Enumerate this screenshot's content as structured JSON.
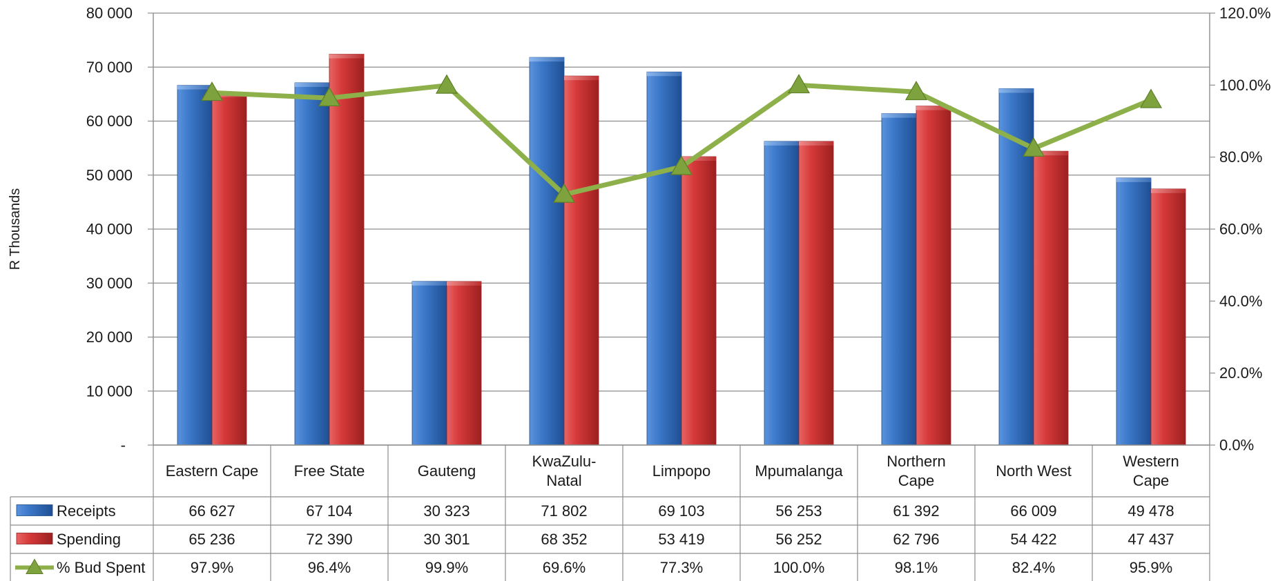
{
  "chart_data": {
    "type": "bar",
    "ylabel": "R Thousands",
    "ylim": [
      0,
      80000
    ],
    "y2lim": [
      0,
      120
    ],
    "y_ticks": [
      "-",
      "10 000",
      "20 000",
      "30 000",
      "40 000",
      "50 000",
      "60 000",
      "70 000",
      "80 000"
    ],
    "y2_ticks": [
      "0.0%",
      "20.0%",
      "40.0%",
      "60.0%",
      "80.0%",
      "100.0%",
      "120.0%"
    ],
    "grid": true,
    "legend": "data-table",
    "categories": [
      [
        "Eastern Cape"
      ],
      [
        "Free State"
      ],
      [
        "Gauteng"
      ],
      [
        "KwaZulu-",
        "Natal"
      ],
      [
        "Limpopo"
      ],
      [
        "Mpumalanga"
      ],
      [
        "Northern",
        "Cape"
      ],
      [
        "North West"
      ],
      [
        "Western",
        "Cape"
      ]
    ],
    "series": [
      {
        "name": "Receipts",
        "kind": "bar",
        "color": "#3b78c9",
        "values": [
          66627,
          67104,
          30323,
          71802,
          69103,
          56253,
          61392,
          66009,
          49478
        ],
        "labels": [
          "66 627",
          "67 104",
          "30 323",
          "71 802",
          "69 103",
          "56 253",
          "61 392",
          "66 009",
          "49 478"
        ]
      },
      {
        "name": "Spending",
        "kind": "bar",
        "color": "#d63a3a",
        "values": [
          65236,
          72390,
          30301,
          68352,
          53419,
          56252,
          62796,
          54422,
          47437
        ],
        "labels": [
          "65 236",
          "72 390",
          "30 301",
          "68 352",
          "53 419",
          "56 252",
          "62 796",
          "54 422",
          "47 437"
        ]
      },
      {
        "name": "% Bud Spent",
        "kind": "line",
        "axis": "secondary",
        "color": "#8db04a",
        "values": [
          97.9,
          96.4,
          99.9,
          69.6,
          77.3,
          100.0,
          98.1,
          82.4,
          95.9
        ],
        "labels": [
          "97.9%",
          "96.4%",
          "99.9%",
          "69.6%",
          "77.3%",
          "100.0%",
          "98.1%",
          "82.4%",
          "95.9%"
        ]
      }
    ]
  }
}
